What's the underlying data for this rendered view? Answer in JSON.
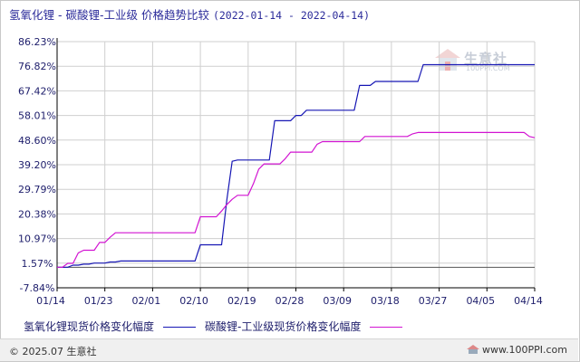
{
  "title": {
    "main": "氢氧化锂 - 碳酸锂-工业级 价格趋势比较",
    "range": "(2022-01-14 - 2022-04-14)"
  },
  "watermark": {
    "name": "生意社",
    "url": "100PPI.COM",
    "icon": "ppi-logo-icon"
  },
  "footer": {
    "copyright": "© 2025.07 生意社",
    "site": "www.100PPI.com"
  },
  "colors": {
    "series1": "#1616b4",
    "series2": "#d214d2",
    "axis": "#000000",
    "grid": "#cfcfcf",
    "text": "#1d1d6b"
  },
  "chart_data": {
    "type": "line",
    "ylim": [
      -7.84,
      86.23
    ],
    "y_ticks": [
      "86.23%",
      "76.82%",
      "67.42%",
      "58.01%",
      "48.60%",
      "39.20%",
      "29.79%",
      "20.38%",
      "10.97%",
      "1.57%",
      "-7.84%"
    ],
    "y_tick_values": [
      86.23,
      76.82,
      67.42,
      58.01,
      48.6,
      39.2,
      29.79,
      20.38,
      10.97,
      1.57,
      -7.84
    ],
    "x_ticks": [
      "01/14",
      "01/23",
      "02/01",
      "02/10",
      "02/19",
      "02/28",
      "03/09",
      "03/18",
      "03/27",
      "04/05",
      "04/14"
    ],
    "x_tick_days": [
      0,
      9,
      18,
      27,
      36,
      45,
      54,
      63,
      72,
      81,
      90
    ],
    "grid": true,
    "legend_position": "bottom",
    "series": [
      {
        "name": "氢氧化锂现货价格变化幅度",
        "color": "#1616b4",
        "points": [
          [
            0,
            0
          ],
          [
            1,
            0
          ],
          [
            2,
            0
          ],
          [
            3,
            0.8
          ],
          [
            4,
            0.8
          ],
          [
            5,
            1.2
          ],
          [
            6,
            1.2
          ],
          [
            7,
            1.6
          ],
          [
            8,
            1.6
          ],
          [
            9,
            1.6
          ],
          [
            10,
            2.0
          ],
          [
            11,
            2.0
          ],
          [
            12,
            2.4
          ],
          [
            13,
            2.4
          ],
          [
            14,
            2.4
          ],
          [
            15,
            2.4
          ],
          [
            16,
            2.4
          ],
          [
            17,
            2.4
          ],
          [
            18,
            2.4
          ],
          [
            19,
            2.4
          ],
          [
            20,
            2.4
          ],
          [
            21,
            2.4
          ],
          [
            22,
            2.4
          ],
          [
            23,
            2.4
          ],
          [
            24,
            2.4
          ],
          [
            25,
            2.4
          ],
          [
            26,
            2.4
          ],
          [
            27,
            8.6
          ],
          [
            28,
            8.6
          ],
          [
            29,
            8.6
          ],
          [
            30,
            8.6
          ],
          [
            31,
            8.6
          ],
          [
            32,
            26.0
          ],
          [
            33,
            40.5
          ],
          [
            34,
            41.0
          ],
          [
            35,
            41.0
          ],
          [
            36,
            41.0
          ],
          [
            37,
            41.0
          ],
          [
            38,
            41.0
          ],
          [
            39,
            41.0
          ],
          [
            40,
            41.0
          ],
          [
            41,
            56.0
          ],
          [
            42,
            56.0
          ],
          [
            43,
            56.0
          ],
          [
            44,
            56.0
          ],
          [
            45,
            58.0
          ],
          [
            46,
            58.0
          ],
          [
            47,
            60.0
          ],
          [
            48,
            60.0
          ],
          [
            49,
            60.0
          ],
          [
            50,
            60.0
          ],
          [
            51,
            60.0
          ],
          [
            52,
            60.0
          ],
          [
            53,
            60.0
          ],
          [
            54,
            60.0
          ],
          [
            55,
            60.0
          ],
          [
            56,
            60.0
          ],
          [
            57,
            69.5
          ],
          [
            58,
            69.5
          ],
          [
            59,
            69.5
          ],
          [
            60,
            71.0
          ],
          [
            61,
            71.0
          ],
          [
            62,
            71.0
          ],
          [
            63,
            71.0
          ],
          [
            64,
            71.0
          ],
          [
            65,
            71.0
          ],
          [
            66,
            71.0
          ],
          [
            67,
            71.0
          ],
          [
            68,
            71.0
          ],
          [
            69,
            77.4
          ],
          [
            70,
            77.4
          ],
          [
            71,
            77.4
          ],
          [
            72,
            77.4
          ],
          [
            73,
            77.4
          ],
          [
            74,
            77.4
          ],
          [
            75,
            77.4
          ],
          [
            76,
            77.4
          ],
          [
            77,
            77.4
          ],
          [
            78,
            77.4
          ],
          [
            79,
            77.4
          ],
          [
            80,
            77.4
          ],
          [
            81,
            77.4
          ],
          [
            82,
            77.4
          ],
          [
            83,
            77.4
          ],
          [
            84,
            77.4
          ],
          [
            85,
            77.4
          ],
          [
            86,
            77.4
          ],
          [
            87,
            77.4
          ],
          [
            88,
            77.4
          ],
          [
            89,
            77.4
          ],
          [
            90,
            77.4
          ]
        ]
      },
      {
        "name": "碳酸锂-工业级现货价格变化幅度",
        "color": "#d214d2",
        "points": [
          [
            0,
            0
          ],
          [
            1,
            0
          ],
          [
            2,
            1.5
          ],
          [
            3,
            1.5
          ],
          [
            4,
            5.5
          ],
          [
            5,
            6.5
          ],
          [
            6,
            6.5
          ],
          [
            7,
            6.5
          ],
          [
            8,
            9.5
          ],
          [
            9,
            9.5
          ],
          [
            10,
            11.5
          ],
          [
            11,
            13.2
          ],
          [
            12,
            13.2
          ],
          [
            13,
            13.2
          ],
          [
            14,
            13.2
          ],
          [
            15,
            13.2
          ],
          [
            16,
            13.2
          ],
          [
            17,
            13.2
          ],
          [
            18,
            13.2
          ],
          [
            19,
            13.2
          ],
          [
            20,
            13.2
          ],
          [
            21,
            13.2
          ],
          [
            22,
            13.2
          ],
          [
            23,
            13.2
          ],
          [
            24,
            13.2
          ],
          [
            25,
            13.2
          ],
          [
            26,
            13.2
          ],
          [
            27,
            19.3
          ],
          [
            28,
            19.3
          ],
          [
            29,
            19.3
          ],
          [
            30,
            19.3
          ],
          [
            31,
            21.5
          ],
          [
            32,
            24.0
          ],
          [
            33,
            26.0
          ],
          [
            34,
            27.5
          ],
          [
            35,
            27.5
          ],
          [
            36,
            27.5
          ],
          [
            37,
            32.0
          ],
          [
            38,
            37.5
          ],
          [
            39,
            39.5
          ],
          [
            40,
            39.5
          ],
          [
            41,
            39.5
          ],
          [
            42,
            39.5
          ],
          [
            43,
            41.5
          ],
          [
            44,
            44.0
          ],
          [
            45,
            44.0
          ],
          [
            46,
            44.0
          ],
          [
            47,
            44.0
          ],
          [
            48,
            44.0
          ],
          [
            49,
            47.0
          ],
          [
            50,
            48.0
          ],
          [
            51,
            48.0
          ],
          [
            52,
            48.0
          ],
          [
            53,
            48.0
          ],
          [
            54,
            48.0
          ],
          [
            55,
            48.0
          ],
          [
            56,
            48.0
          ],
          [
            57,
            48.0
          ],
          [
            58,
            50.0
          ],
          [
            59,
            50.0
          ],
          [
            60,
            50.0
          ],
          [
            61,
            50.0
          ],
          [
            62,
            50.0
          ],
          [
            63,
            50.0
          ],
          [
            64,
            50.0
          ],
          [
            65,
            50.0
          ],
          [
            66,
            50.0
          ],
          [
            67,
            51.0
          ],
          [
            68,
            51.5
          ],
          [
            69,
            51.5
          ],
          [
            70,
            51.5
          ],
          [
            71,
            51.5
          ],
          [
            72,
            51.5
          ],
          [
            73,
            51.5
          ],
          [
            74,
            51.5
          ],
          [
            75,
            51.5
          ],
          [
            76,
            51.5
          ],
          [
            77,
            51.5
          ],
          [
            78,
            51.5
          ],
          [
            79,
            51.5
          ],
          [
            80,
            51.5
          ],
          [
            81,
            51.5
          ],
          [
            82,
            51.5
          ],
          [
            83,
            51.5
          ],
          [
            84,
            51.5
          ],
          [
            85,
            51.5
          ],
          [
            86,
            51.5
          ],
          [
            87,
            51.5
          ],
          [
            88,
            51.5
          ],
          [
            89,
            50.0
          ],
          [
            90,
            49.5
          ]
        ]
      }
    ]
  }
}
